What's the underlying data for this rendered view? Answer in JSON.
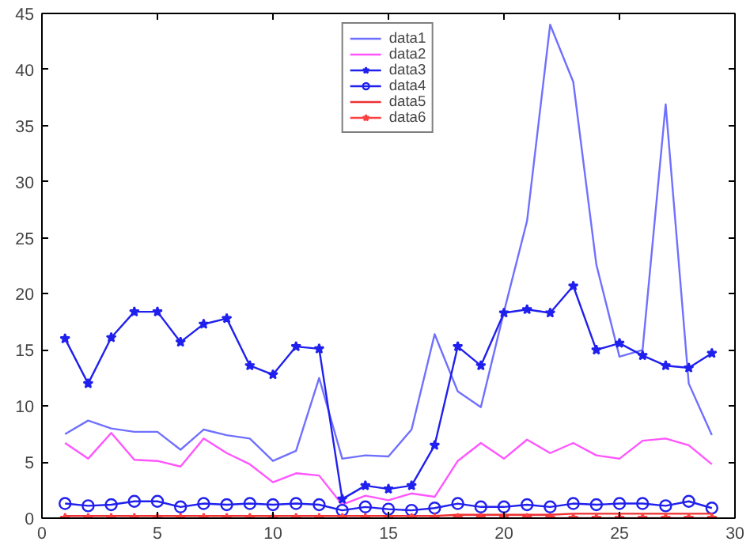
{
  "chart_data": {
    "type": "line",
    "x": [
      1,
      2,
      3,
      4,
      5,
      6,
      7,
      8,
      9,
      10,
      11,
      12,
      13,
      14,
      15,
      16,
      17,
      18,
      19,
      20,
      21,
      22,
      23,
      24,
      25,
      26,
      27,
      28,
      29
    ],
    "xlim": [
      0,
      30
    ],
    "ylim": [
      0,
      45
    ],
    "xticks": [
      0,
      5,
      10,
      15,
      20,
      25,
      30
    ],
    "yticks": [
      0,
      5,
      10,
      15,
      20,
      25,
      30,
      35,
      40,
      45
    ],
    "grid": false,
    "legend": "top",
    "series": [
      {
        "name": "data1",
        "color": "#7070ff",
        "marker": "none",
        "values": [
          7.5,
          8.7,
          8.0,
          7.7,
          7.7,
          6.1,
          7.9,
          7.4,
          7.1,
          5.1,
          6.0,
          12.5,
          5.3,
          5.6,
          5.5,
          7.9,
          16.4,
          11.3,
          9.9,
          18.4,
          26.5,
          44.0,
          38.9,
          22.6,
          14.4,
          15.0,
          36.9,
          12.0,
          7.4
        ]
      },
      {
        "name": "data2",
        "color": "#ff55ff",
        "marker": "none",
        "values": [
          6.7,
          5.3,
          7.6,
          5.2,
          5.1,
          4.6,
          7.1,
          5.8,
          4.8,
          3.2,
          4.0,
          3.8,
          1.2,
          2.0,
          1.6,
          2.2,
          1.9,
          5.1,
          6.7,
          5.3,
          7.0,
          5.8,
          6.7,
          5.6,
          5.3,
          6.9,
          7.1,
          6.5,
          4.8
        ]
      },
      {
        "name": "data3",
        "color": "#2020ee",
        "marker": "star",
        "values": [
          16.0,
          12.0,
          16.1,
          18.4,
          18.4,
          15.7,
          17.3,
          17.8,
          13.6,
          12.8,
          15.3,
          15.1,
          1.7,
          2.9,
          2.6,
          2.9,
          6.5,
          15.3,
          13.6,
          18.3,
          18.6,
          18.3,
          20.7,
          15.0,
          15.6,
          14.5,
          13.6,
          13.4,
          14.7
        ]
      },
      {
        "name": "data4",
        "color": "#2020ee",
        "marker": "circle",
        "values": [
          1.3,
          1.1,
          1.2,
          1.5,
          1.5,
          1.0,
          1.3,
          1.2,
          1.3,
          1.2,
          1.3,
          1.2,
          0.7,
          1.0,
          0.8,
          0.7,
          0.9,
          1.3,
          1.0,
          1.0,
          1.2,
          1.0,
          1.3,
          1.2,
          1.3,
          1.3,
          1.1,
          1.5,
          0.9
        ]
      },
      {
        "name": "data5",
        "color": "#ee3030",
        "marker": "none",
        "values": [
          0.2,
          0.2,
          0.2,
          0.2,
          0.2,
          0.2,
          0.2,
          0.2,
          0.2,
          0.2,
          0.2,
          0.2,
          0.2,
          0.2,
          0.2,
          0.2,
          0.2,
          0.3,
          0.3,
          0.3,
          0.3,
          0.3,
          0.4,
          0.4,
          0.4,
          0.4,
          0.4,
          0.4,
          0.4
        ]
      },
      {
        "name": "data6",
        "color": "#ff4040",
        "marker": "star",
        "values": [
          0,
          0,
          0,
          0,
          0,
          0,
          0,
          0,
          0,
          0,
          0,
          0,
          0,
          0,
          0,
          0,
          0,
          0,
          0,
          0,
          0,
          0,
          0,
          0,
          0,
          0,
          0,
          0,
          0
        ]
      }
    ]
  }
}
